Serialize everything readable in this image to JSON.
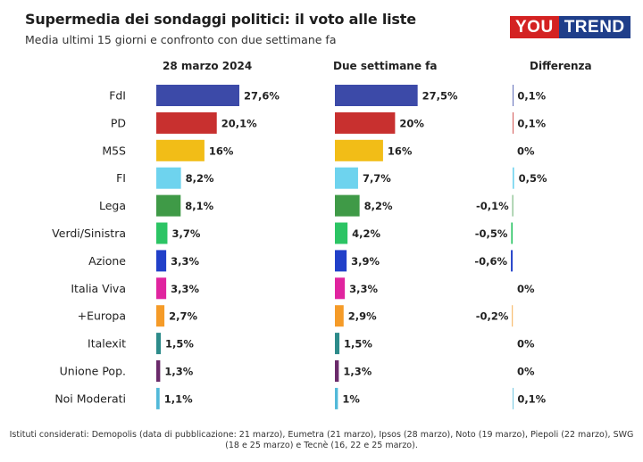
{
  "header": {
    "title": "Supermedia dei sondaggi politici: il voto alle liste",
    "subtitle": "Media ultimi 15 giorni e confronto con due settimane fa"
  },
  "logo": {
    "part1": "YOU",
    "part2": "TREND"
  },
  "columns": {
    "current": "28 marzo 2024",
    "previous": "Due settimane fa",
    "difference": "Differenza"
  },
  "footnote": {
    "line1": "Istituti considerati: Demopolis (data di pubblicazione: 21 marzo), Eumetra (21 marzo), Ipsos (28 marzo), Noto (19 marzo), Piepoli (22 marzo), SWG",
    "line2": "(18 e 25 marzo) e Tecnè (16, 22 e 25 marzo)."
  },
  "chart_data": {
    "type": "bar",
    "orientation": "horizontal",
    "categories": [
      "FdI",
      "PD",
      "M5S",
      "FI",
      "Lega",
      "Verdi/Sinistra",
      "Azione",
      "Italia Viva",
      "+Europa",
      "Italexit",
      "Unione Pop.",
      "Noi Moderati"
    ],
    "colors": [
      "#3c4aa8",
      "#c8302f",
      "#f2bd17",
      "#6ed3ee",
      "#3f9a47",
      "#2cc464",
      "#2140c9",
      "#e0249f",
      "#f59b28",
      "#2d8b8a",
      "#6a2a6a",
      "#52b9d9"
    ],
    "series": [
      {
        "name": "28 marzo 2024",
        "values": [
          27.6,
          20.1,
          16,
          8.2,
          8.1,
          3.7,
          3.3,
          3.3,
          2.7,
          1.5,
          1.3,
          1.1
        ],
        "labels": [
          "27,6%",
          "20,1%",
          "16%",
          "8,2%",
          "8,1%",
          "3,7%",
          "3,3%",
          "3,3%",
          "2,7%",
          "1,5%",
          "1,3%",
          "1,1%"
        ]
      },
      {
        "name": "Due settimane fa",
        "values": [
          27.5,
          20,
          16,
          7.7,
          8.2,
          4.2,
          3.9,
          3.3,
          2.9,
          1.5,
          1.3,
          1
        ],
        "labels": [
          "27,5%",
          "20%",
          "16%",
          "7,7%",
          "8,2%",
          "4,2%",
          "3,9%",
          "3,3%",
          "2,9%",
          "1,5%",
          "1,3%",
          "1%"
        ]
      },
      {
        "name": "Differenza",
        "values": [
          0.1,
          0.1,
          0,
          0.5,
          -0.1,
          -0.5,
          -0.6,
          0,
          -0.2,
          0,
          0,
          0.1
        ],
        "labels": [
          "0,1%",
          "0,1%",
          "0%",
          "0,5%",
          "-0,1%",
          "-0,5%",
          "-0,6%",
          "0%",
          "-0,2%",
          "0%",
          "0%",
          "0,1%"
        ]
      }
    ],
    "xlim": [
      0,
      27.6
    ]
  }
}
